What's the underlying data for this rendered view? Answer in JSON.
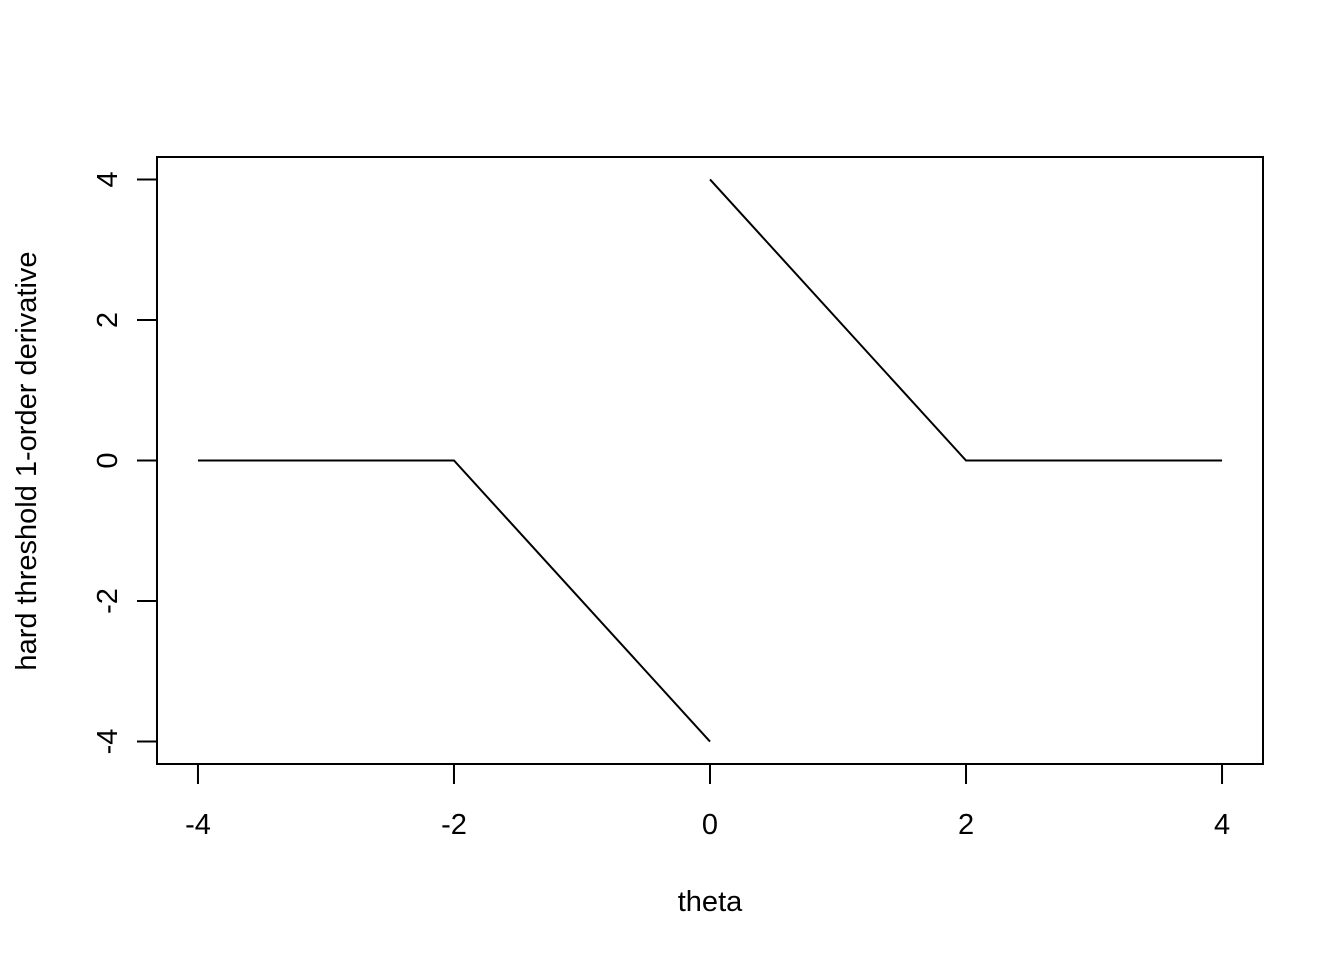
{
  "chart_data": {
    "type": "line",
    "title": "",
    "xlabel": "theta",
    "ylabel": "hard threshold 1-order derivative",
    "xlim": [
      -4.32,
      4.32
    ],
    "ylim": [
      -4.32,
      4.32
    ],
    "x_ticks": [
      -4,
      -2,
      0,
      2,
      4
    ],
    "x_tick_labels": [
      "-4",
      "-2",
      "0",
      "2",
      "4"
    ],
    "y_ticks": [
      -4,
      -2,
      0,
      2,
      4
    ],
    "y_tick_labels": [
      "-4",
      "-2",
      "0",
      "2",
      "4"
    ],
    "grid": false,
    "line_color": "#000000",
    "series": [
      {
        "segments": [
          [
            [
              -4,
              0
            ],
            [
              -2,
              0
            ],
            [
              0,
              -4
            ]
          ],
          [
            [
              0,
              4
            ],
            [
              2,
              0
            ],
            [
              4,
              0
            ]
          ]
        ]
      }
    ]
  }
}
